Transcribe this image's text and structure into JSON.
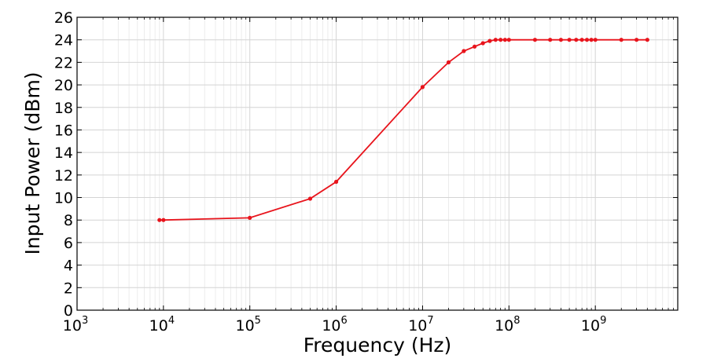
{
  "chart_data": {
    "type": "line",
    "title": "",
    "xlabel": "Frequency (Hz)",
    "ylabel": "Input Power (dBm)",
    "x_scale": "log",
    "xlim": [
      1000,
      9000000000
    ],
    "ylim": [
      0,
      26
    ],
    "grid": true,
    "legend": "none",
    "x_ticks": [
      {
        "value": 1000,
        "base": "10",
        "exp": "3"
      },
      {
        "value": 10000,
        "base": "10",
        "exp": "4"
      },
      {
        "value": 100000,
        "base": "10",
        "exp": "5"
      },
      {
        "value": 1000000,
        "base": "10",
        "exp": "6"
      },
      {
        "value": 10000000,
        "base": "10",
        "exp": "7"
      },
      {
        "value": 100000000,
        "base": "10",
        "exp": "8"
      },
      {
        "value": 1000000000,
        "base": "10",
        "exp": "9"
      }
    ],
    "y_ticks": [
      0,
      2,
      4,
      6,
      8,
      10,
      12,
      14,
      16,
      18,
      20,
      22,
      24,
      26
    ],
    "series": [
      {
        "color": "#e8141c",
        "points": [
          [
            9000,
            8.0
          ],
          [
            10000,
            8.0
          ],
          [
            100000,
            8.2
          ],
          [
            500000,
            9.9
          ],
          [
            1000000,
            11.4
          ],
          [
            10000000,
            19.8
          ],
          [
            20000000,
            22.0
          ],
          [
            30000000,
            23.0
          ],
          [
            40000000,
            23.4
          ],
          [
            50000000,
            23.7
          ],
          [
            60000000,
            23.9
          ],
          [
            70000000,
            24.0
          ],
          [
            80000000,
            24.0
          ],
          [
            90000000,
            24.0
          ],
          [
            100000000,
            24.0
          ],
          [
            200000000,
            24.0
          ],
          [
            300000000,
            24.0
          ],
          [
            400000000,
            24.0
          ],
          [
            500000000,
            24.0
          ],
          [
            600000000,
            24.0
          ],
          [
            700000000,
            24.0
          ],
          [
            800000000,
            24.0
          ],
          [
            900000000,
            24.0
          ],
          [
            1000000000,
            24.0
          ],
          [
            2000000000,
            24.0
          ],
          [
            3000000000,
            24.0
          ],
          [
            4000000000,
            24.0
          ]
        ]
      }
    ]
  }
}
